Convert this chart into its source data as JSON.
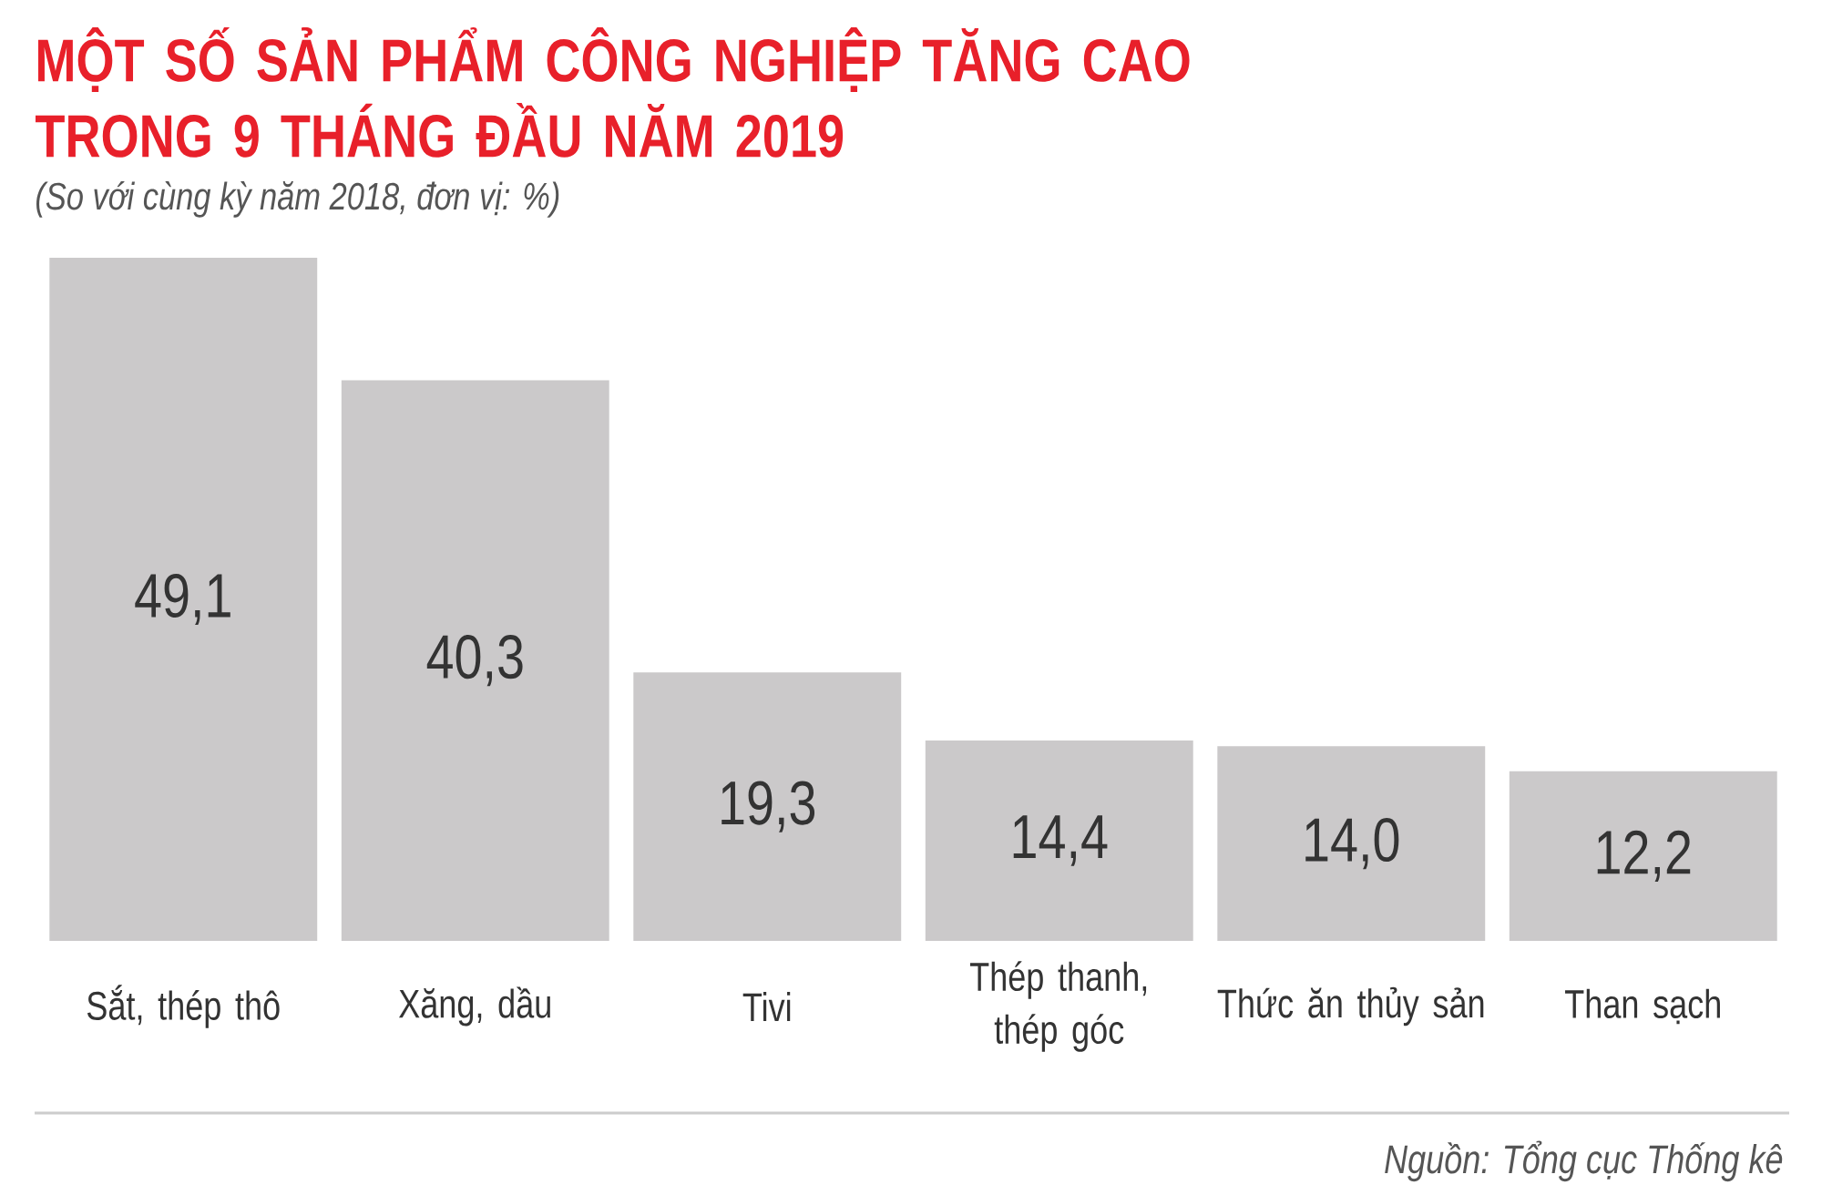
{
  "chart_data": {
    "type": "bar",
    "title": "MỘT SỐ SẢN PHẨM CÔNG NGHIỆP TĂNG CAO TRONG 9 THÁNG ĐẦU NĂM 2019",
    "subtitle": "(So với cùng kỳ năm 2018, đơn vị: %)",
    "categories": [
      "Sắt, thép thô",
      "Xăng, dầu",
      "Tivi",
      "Thép thanh, thép góc",
      "Thức ăn thủy sản",
      "Than sạch"
    ],
    "values": [
      49.1,
      40.3,
      19.3,
      14.4,
      14.0,
      12.2
    ],
    "value_labels": [
      "49,1",
      "40,3",
      "19,3",
      "14,4",
      "14,0",
      "12,2"
    ],
    "color": "#cbc9ca",
    "annotations": [
      "Nguồn: Tổng cục Thống kê"
    ]
  }
}
